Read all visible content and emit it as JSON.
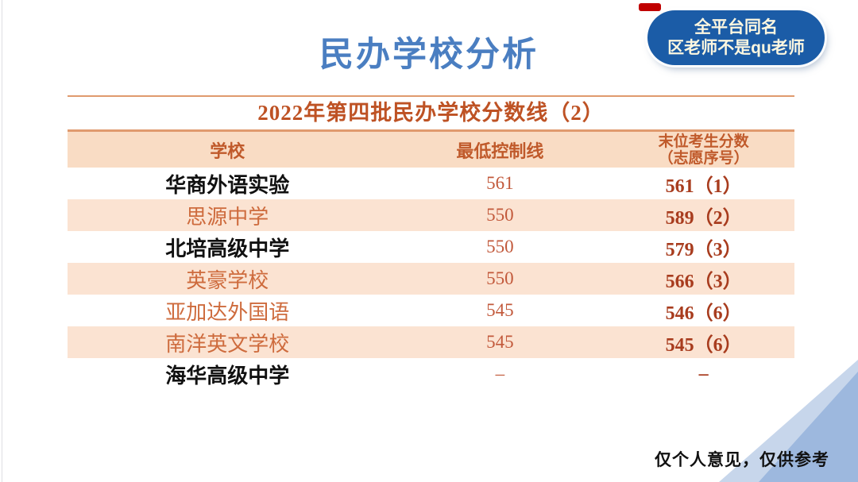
{
  "page": {
    "title": "民办学校分析",
    "badge": {
      "line1": "全平台同名",
      "line2": "区老师不是qu老师"
    },
    "footer_note": "仅个人意见，仅供参考"
  },
  "table": {
    "title": "2022年第四批民办学校分数线（2）",
    "headers": {
      "school": "学校",
      "min_line": "最低控制线",
      "last_score_line1": "末位考生分数",
      "last_score_line2": "（志愿序号）"
    },
    "rows": [
      {
        "school": "华商外语实验",
        "school_color": "black",
        "min_line": "561",
        "last_score": "561（1）"
      },
      {
        "school": "思源中学",
        "school_color": "orange",
        "min_line": "550",
        "last_score": "589（2）"
      },
      {
        "school": "北培高级中学",
        "school_color": "black",
        "min_line": "550",
        "last_score": "579（3）"
      },
      {
        "school": "英豪学校",
        "school_color": "orange",
        "min_line": "550",
        "last_score": "566（3）"
      },
      {
        "school": "亚加达外国语",
        "school_color": "orange",
        "min_line": "545",
        "last_score": "546（6）"
      },
      {
        "school": "南洋英文学校",
        "school_color": "orange",
        "min_line": "545",
        "last_score": "545（6）"
      },
      {
        "school": "海华高级中学",
        "school_color": "black",
        "min_line": "–",
        "last_score": "–"
      }
    ]
  },
  "colors": {
    "title_blue": "#4a7ec1",
    "badge_bg": "#1b5ca7",
    "badge_text": "#fdf7e0",
    "red_dash": "#c00000",
    "rule_orange": "#e09a6e",
    "table_title_color": "#be5224",
    "header_bg": "#f9dcc4",
    "header_text": "#c05a2b",
    "row_alt_bg": "#fbe3d2",
    "school_orange": "#ce6b3d",
    "min_line_color": "#c2593b",
    "last_score_color": "#a83c1e",
    "triangle_light": "#c7d6eb",
    "triangle_dark": "#9db8de"
  }
}
